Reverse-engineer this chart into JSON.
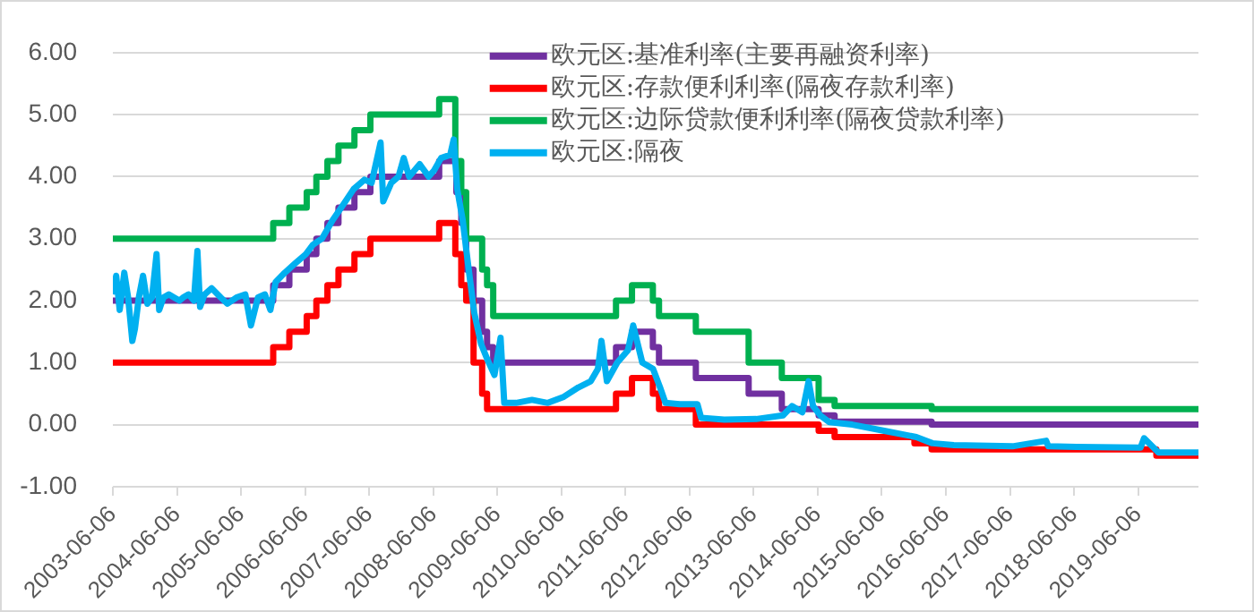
{
  "chart_data": {
    "type": "line",
    "legend": "top right",
    "grid": "y",
    "marker": "none",
    "xlim": [
      "2003-06-06",
      "2020-05-15"
    ],
    "xticks": [
      "2003-06-06",
      "2004-06-06",
      "2005-06-06",
      "2006-06-06",
      "2007-06-06",
      "2008-06-06",
      "2009-06-06",
      "2010-06-06",
      "2011-06-06",
      "2012-06-06",
      "2013-06-06",
      "2014-06-06",
      "2015-06-06",
      "2016-06-06",
      "2017-06-06",
      "2018-06-06",
      "2019-06-06"
    ],
    "ylim": [
      -1,
      6
    ],
    "yticks": [
      {
        "value": -1,
        "label": "-1.00"
      },
      {
        "value": 0,
        "label": "0.00"
      },
      {
        "value": 1,
        "label": "1.00"
      },
      {
        "value": 2,
        "label": "2.00"
      },
      {
        "value": 3,
        "label": "3.00"
      },
      {
        "value": 4,
        "label": "4.00"
      },
      {
        "value": 5,
        "label": "5.00"
      },
      {
        "value": 6,
        "label": "6.00"
      }
    ],
    "series": [
      {
        "name": "欧元区:基准利率(主要再融资利率)",
        "type": "step",
        "color": "#7030a0",
        "x": [
          "2003-06-06",
          "2005-12-06",
          "2006-03-08",
          "2006-06-15",
          "2006-08-09",
          "2006-10-11",
          "2006-12-13",
          "2007-03-14",
          "2007-06-13",
          "2008-07-09",
          "2008-10-15",
          "2008-11-12",
          "2008-12-10",
          "2009-01-21",
          "2009-03-11",
          "2009-04-08",
          "2009-05-13",
          "2011-04-13",
          "2011-07-13",
          "2011-11-09",
          "2011-12-14",
          "2012-07-11",
          "2013-05-08",
          "2013-11-13",
          "2014-06-11",
          "2014-09-10",
          "2016-03-16",
          "2020-05-15"
        ],
        "values": [
          2.0,
          2.25,
          2.5,
          2.75,
          3.0,
          3.25,
          3.5,
          3.75,
          4.0,
          4.25,
          3.75,
          3.25,
          2.5,
          2.0,
          1.5,
          1.25,
          1.0,
          1.25,
          1.5,
          1.25,
          1.0,
          0.75,
          0.5,
          0.25,
          0.15,
          0.05,
          0.0,
          0.0
        ]
      },
      {
        "name": "欧元区:存款便利利率(隔夜存款利率)",
        "type": "step",
        "color": "#ff0000",
        "x": [
          "2003-06-06",
          "2005-12-06",
          "2006-03-08",
          "2006-06-15",
          "2006-08-09",
          "2006-10-11",
          "2006-12-13",
          "2007-03-14",
          "2007-06-13",
          "2008-07-09",
          "2008-10-09",
          "2008-11-12",
          "2008-12-10",
          "2009-01-21",
          "2009-03-11",
          "2009-04-08",
          "2011-04-13",
          "2011-07-13",
          "2011-11-09",
          "2011-12-14",
          "2012-07-11",
          "2014-06-11",
          "2014-09-10",
          "2015-12-09",
          "2016-03-16",
          "2019-09-18",
          "2020-05-15"
        ],
        "values": [
          1.0,
          1.25,
          1.5,
          1.75,
          2.0,
          2.25,
          2.5,
          2.75,
          3.0,
          3.25,
          2.75,
          2.25,
          2.0,
          1.0,
          0.5,
          0.25,
          0.5,
          0.75,
          0.5,
          0.25,
          0.0,
          -0.1,
          -0.2,
          -0.3,
          -0.4,
          -0.5,
          -0.5
        ]
      },
      {
        "name": "欧元区:边际贷款便利利率(隔夜贷款利率)",
        "type": "step",
        "color": "#00b050",
        "x": [
          "2003-06-06",
          "2005-12-06",
          "2006-03-08",
          "2006-06-15",
          "2006-08-09",
          "2006-10-11",
          "2006-12-13",
          "2007-03-14",
          "2007-06-13",
          "2008-07-09",
          "2008-10-09",
          "2008-11-12",
          "2008-12-10",
          "2009-01-21",
          "2009-03-11",
          "2009-04-08",
          "2009-05-13",
          "2011-04-13",
          "2011-07-13",
          "2011-11-09",
          "2011-12-14",
          "2012-07-11",
          "2013-05-08",
          "2013-11-13",
          "2014-06-11",
          "2014-09-10",
          "2016-03-16",
          "2020-05-15"
        ],
        "values": [
          3.0,
          3.25,
          3.5,
          3.75,
          4.0,
          4.25,
          4.5,
          4.75,
          5.0,
          5.25,
          4.25,
          3.75,
          3.0,
          3.0,
          2.5,
          2.25,
          1.75,
          2.0,
          2.25,
          2.0,
          1.75,
          1.5,
          1.0,
          0.75,
          0.4,
          0.3,
          0.25,
          0.25
        ]
      },
      {
        "name": "欧元区:隔夜",
        "type": "line",
        "color": "#00b0f0",
        "x": [
          "2003-06-06",
          "2003-06-25",
          "2003-07-15",
          "2003-08-10",
          "2003-09-01",
          "2003-09-25",
          "2003-10-10",
          "2003-11-01",
          "2003-11-25",
          "2003-12-20",
          "2004-01-15",
          "2004-02-10",
          "2004-02-25",
          "2004-03-20",
          "2004-04-20",
          "2004-05-20",
          "2004-06-20",
          "2004-07-10",
          "2004-08-10",
          "2004-09-10",
          "2004-09-30",
          "2004-10-15",
          "2004-11-10",
          "2004-12-20",
          "2005-02-10",
          "2005-03-20",
          "2005-05-10",
          "2005-06-30",
          "2005-08-01",
          "2005-09-10",
          "2005-10-20",
          "2005-11-20",
          "2005-12-20",
          "2006-02-10",
          "2006-04-10",
          "2006-06-10",
          "2006-07-20",
          "2006-09-10",
          "2006-11-10",
          "2007-01-10",
          "2007-03-10",
          "2007-05-10",
          "2007-06-20",
          "2007-08-10",
          "2007-08-25",
          "2007-10-10",
          "2007-11-20",
          "2007-12-20",
          "2008-01-20",
          "2008-03-20",
          "2008-05-10",
          "2008-06-10",
          "2008-07-20",
          "2008-09-10",
          "2008-09-30",
          "2008-10-20",
          "2008-11-20",
          "2008-12-20",
          "2009-01-25",
          "2009-03-05",
          "2009-04-10",
          "2009-05-20",
          "2009-06-24",
          "2009-07-15",
          "2009-09-20",
          "2009-12-20",
          "2010-03-20",
          "2010-06-20",
          "2010-09-10",
          "2010-11-20",
          "2010-12-31",
          "2011-01-20",
          "2011-02-20",
          "2011-04-20",
          "2011-06-20",
          "2011-07-20",
          "2011-09-10",
          "2011-11-10",
          "2011-12-20",
          "2012-01-20",
          "2012-04-10",
          "2012-07-20",
          "2012-08-10",
          "2012-12-20",
          "2013-06-20",
          "2013-11-20",
          "2014-01-10",
          "2014-03-10",
          "2014-04-15",
          "2014-05-10",
          "2014-06-20",
          "2014-08-10",
          "2014-12-20",
          "2015-06-20",
          "2015-12-20",
          "2016-03-20",
          "2016-07-20",
          "2017-06-20",
          "2017-12-29",
          "2018-01-10",
          "2018-06-20",
          "2019-06-20",
          "2019-07-10",
          "2019-09-30",
          "2020-05-15"
        ],
        "values": [
          2.1,
          2.4,
          1.85,
          2.45,
          2.05,
          1.35,
          1.55,
          2.05,
          2.4,
          1.95,
          2.05,
          2.75,
          1.85,
          2.05,
          2.1,
          2.05,
          2.0,
          2.05,
          2.1,
          2.0,
          2.8,
          1.9,
          2.1,
          2.2,
          2.05,
          1.95,
          2.05,
          2.1,
          1.6,
          2.05,
          2.1,
          1.85,
          2.3,
          2.45,
          2.6,
          2.75,
          2.9,
          3.0,
          3.3,
          3.55,
          3.8,
          3.95,
          3.9,
          4.55,
          3.6,
          3.9,
          4.0,
          4.3,
          4.0,
          4.2,
          4.0,
          4.1,
          4.3,
          4.35,
          4.6,
          3.8,
          3.3,
          2.6,
          1.8,
          1.3,
          1.05,
          0.8,
          1.4,
          0.35,
          0.35,
          0.4,
          0.35,
          0.45,
          0.6,
          0.7,
          0.9,
          1.35,
          0.7,
          1.0,
          1.2,
          1.6,
          1.0,
          0.9,
          0.6,
          0.35,
          0.33,
          0.33,
          0.11,
          0.08,
          0.09,
          0.15,
          0.3,
          0.2,
          0.7,
          0.3,
          0.15,
          0.04,
          0.0,
          -0.1,
          -0.2,
          -0.3,
          -0.33,
          -0.35,
          -0.26,
          -0.35,
          -0.36,
          -0.37,
          -0.22,
          -0.45,
          -0.45
        ]
      }
    ]
  }
}
